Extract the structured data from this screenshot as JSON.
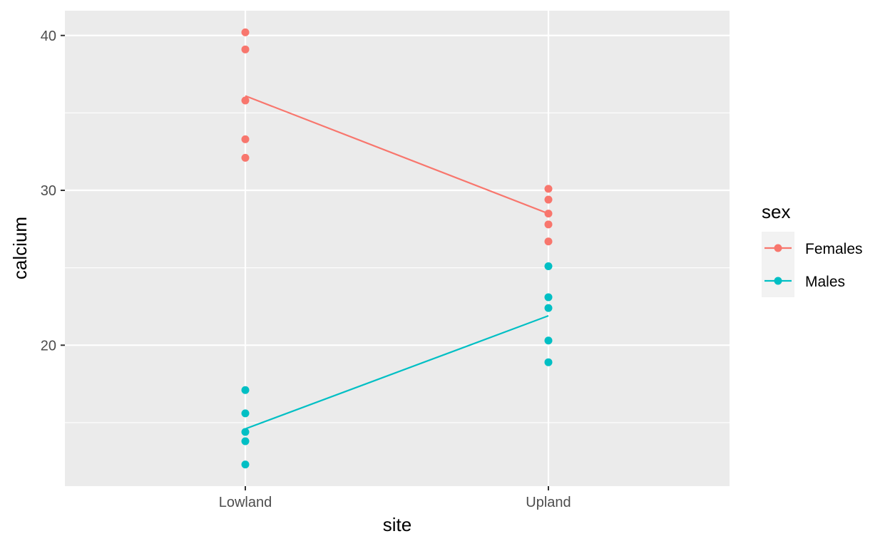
{
  "chart_data": {
    "type": "scatter",
    "title": "",
    "xlabel": "site",
    "ylabel": "calcium",
    "categories": [
      "Lowland",
      "Upland"
    ],
    "ylim": [
      10.9,
      41.6
    ],
    "yticks": [
      20,
      30,
      40
    ],
    "ytick_labels": [
      "20",
      "30",
      "40"
    ],
    "grid": true,
    "legend": {
      "title": "sex",
      "position": "right"
    },
    "series": [
      {
        "name": "Females",
        "color": "#F8766D",
        "points": [
          {
            "x": "Lowland",
            "y": 40.2
          },
          {
            "x": "Lowland",
            "y": 39.1
          },
          {
            "x": "Lowland",
            "y": 35.8
          },
          {
            "x": "Lowland",
            "y": 33.3
          },
          {
            "x": "Lowland",
            "y": 32.1
          },
          {
            "x": "Upland",
            "y": 30.1
          },
          {
            "x": "Upland",
            "y": 29.4
          },
          {
            "x": "Upland",
            "y": 28.5
          },
          {
            "x": "Upland",
            "y": 27.8
          },
          {
            "x": "Upland",
            "y": 26.7
          }
        ],
        "means": [
          36.1,
          28.5
        ]
      },
      {
        "name": "Males",
        "color": "#00BFC4",
        "points": [
          {
            "x": "Lowland",
            "y": 17.1
          },
          {
            "x": "Lowland",
            "y": 15.6
          },
          {
            "x": "Lowland",
            "y": 14.4
          },
          {
            "x": "Lowland",
            "y": 13.8
          },
          {
            "x": "Lowland",
            "y": 12.3
          },
          {
            "x": "Upland",
            "y": 25.1
          },
          {
            "x": "Upland",
            "y": 23.1
          },
          {
            "x": "Upland",
            "y": 22.4
          },
          {
            "x": "Upland",
            "y": 20.3
          },
          {
            "x": "Upland",
            "y": 18.9
          }
        ],
        "means": [
          14.6,
          21.9
        ]
      }
    ]
  }
}
